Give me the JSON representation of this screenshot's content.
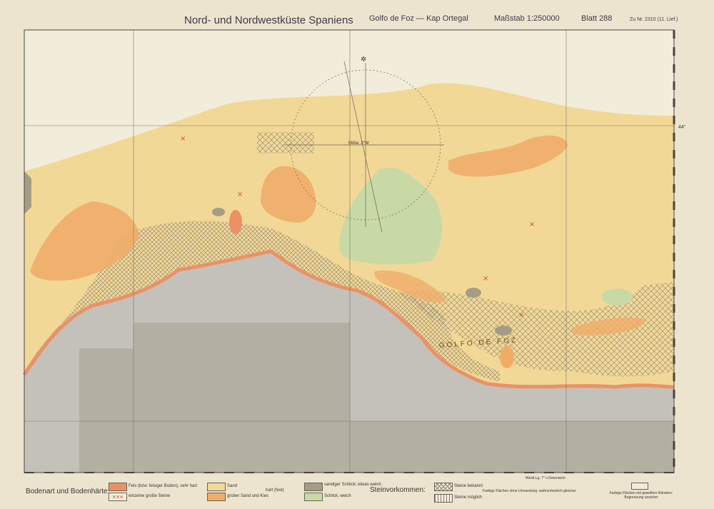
{
  "header": {
    "title": "Nord- und Nordwestküste Spaniens",
    "region": "Golfo de Foz — Kap Ortegal",
    "scale": "Maßstab 1:250000",
    "sheet": "Blatt 288",
    "reference": "Zu Nr. 2310 (11. Lief.)"
  },
  "map": {
    "gulf_label": "GOLFO DE FOZ",
    "compass_label": "Mißw. 2°W",
    "latitude_label": "44°",
    "meridian_label": "Westl.Lg. 7° v.Greenwich"
  },
  "colors": {
    "rock": "#ec9166",
    "sand": "#f2d896",
    "coarse_sand": "#f0ad6a",
    "sandy_mud": "#a49d83",
    "mud": "#c8d9a5",
    "land": "#c4c1ba",
    "inset": "#b3afa2"
  },
  "legend": {
    "title": "Bodenart und Bodenhärte:",
    "rock": "Fels (bzw. felsiger Boden), sehr hart",
    "single_stones": "einzelne große Steine",
    "sand": "Sand",
    "coarse_sand": "grober Sand und Kies",
    "hardness": "hart (fest)",
    "sandy_mud": "sandiger Schlick; etwas weich",
    "mud": "Schlick; weich",
    "stones_title": "Steinvorkommen:",
    "stones_known": "Steine bekannt",
    "stones_possible": "Steine möglich",
    "note_flat": "Farbige Flächen ohne Umrandung: wahrscheinlich gleichar",
    "note_border": "Farbige Flächen mit gewellten Rändern: Begrenzung unsicher"
  }
}
